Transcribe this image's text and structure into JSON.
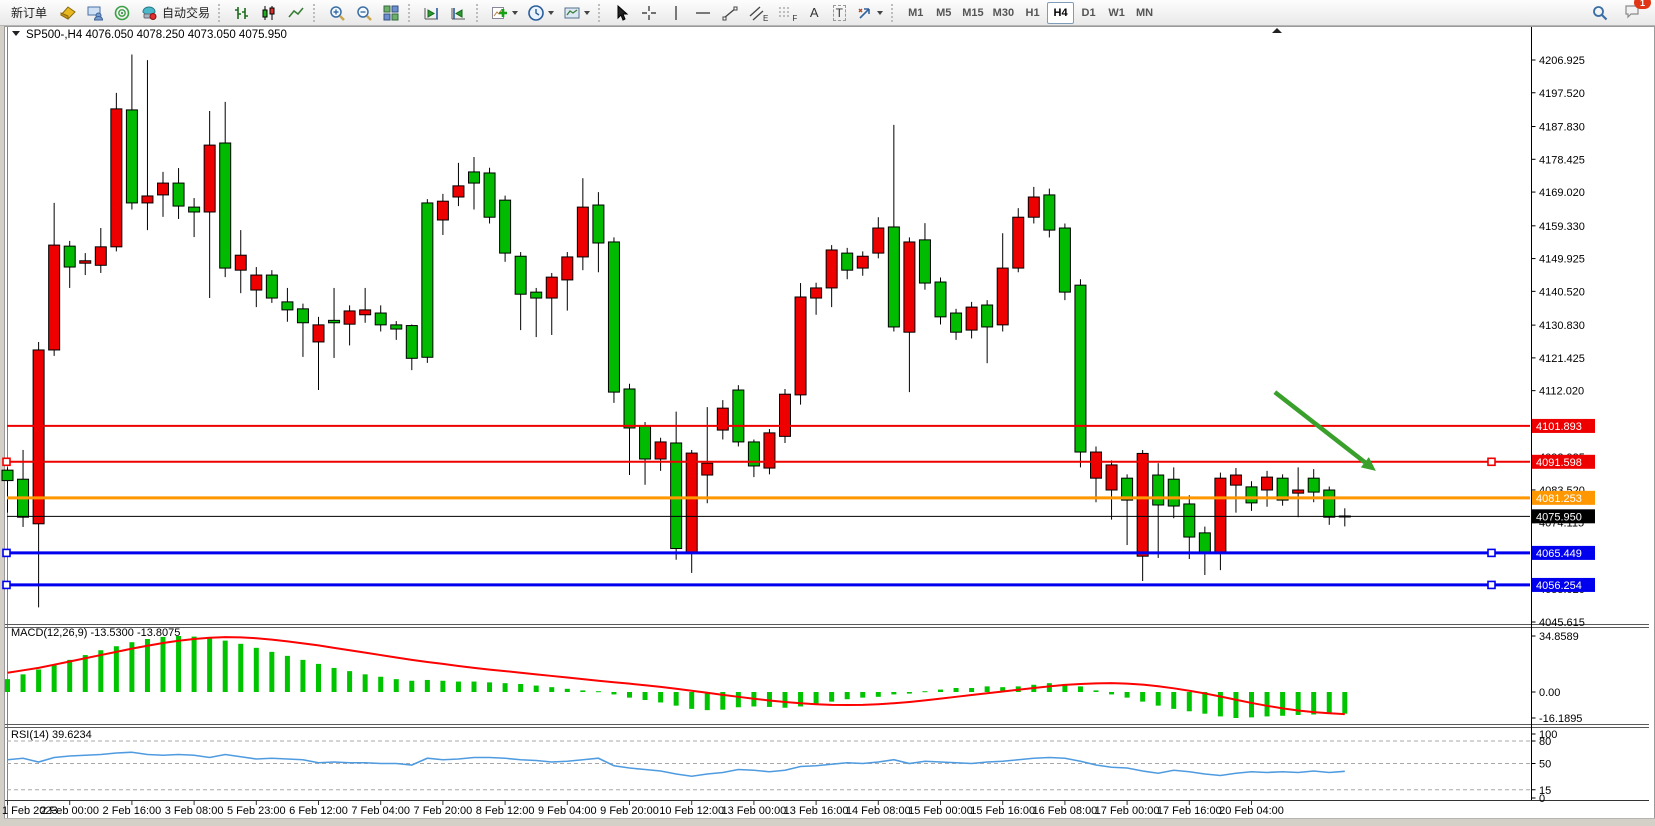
{
  "toolbar": {
    "new_order": "新订单",
    "auto_trading": "自动交易",
    "periods": [
      "M1",
      "M5",
      "M15",
      "M30",
      "H1",
      "H4",
      "D1",
      "W1",
      "MN"
    ],
    "active_period": "H4",
    "notification_count": "1",
    "glyphs": {
      "channel_tool": "E",
      "fibonacci_tool": "F",
      "text_tool": "A",
      "label_tool": "T"
    }
  },
  "symbol_header": {
    "symbol_period": "SP500-,H4",
    "open": "4076.050",
    "high": "4078.250",
    "low": "4073.050",
    "close": "4075.950"
  },
  "price_axis": {
    "ticks": [
      "4206.925",
      "4197.520",
      "4187.830",
      "4178.425",
      "4169.020",
      "4159.330",
      "4149.925",
      "4140.520",
      "4130.830",
      "4121.425",
      "4112.020",
      "4102.330",
      "4092.925",
      "4083.520",
      "4074.115",
      "4064.710",
      "4055.020",
      "4045.615"
    ]
  },
  "levels": [
    {
      "label": "4101.893",
      "price": 4101.893,
      "color": "#ee0000",
      "width": 2,
      "handles": false
    },
    {
      "label": "4091.598",
      "price": 4091.598,
      "color": "#ee0000",
      "width": 2,
      "handles": true
    },
    {
      "label": "4081.253",
      "price": 4081.253,
      "color": "#ff9800",
      "width": 3,
      "handles": false
    },
    {
      "label": "4075.950",
      "price": 4075.95,
      "color": "#000000",
      "width": 1,
      "handles": false
    },
    {
      "label": "4065.449",
      "price": 4065.449,
      "color": "#0000ee",
      "width": 3,
      "handles": true
    },
    {
      "label": "4056.254",
      "price": 4056.254,
      "color": "#0000ee",
      "width": 3,
      "handles": true
    }
  ],
  "indicators": {
    "macd_name": "MACD(12,26,9)",
    "macd_value": "-13.5300",
    "macd_signal_value": "-13.8075",
    "macd_axis": [
      "34.8589",
      "0.00",
      "-16.1895"
    ],
    "rsi_name": "RSI(14)",
    "rsi_value": "39.6234",
    "rsi_axis": [
      "100",
      "80",
      "50",
      "15",
      "0"
    ],
    "rsi_levels": [
      80,
      50,
      15
    ]
  },
  "time_axis": [
    "1 Feb 2023",
    "2 Feb 00:00",
    "2 Feb 16:00",
    "3 Feb 08:00",
    "5 Feb 23:00",
    "6 Feb 12:00",
    "7 Feb 04:00",
    "7 Feb 20:00",
    "8 Feb 12:00",
    "9 Feb 04:00",
    "9 Feb 20:00",
    "10 Feb 12:00",
    "13 Feb 00:00",
    "13 Feb 16:00",
    "14 Feb 08:00",
    "15 Feb 00:00",
    "15 Feb 16:00",
    "16 Feb 08:00",
    "17 Feb 00:00",
    "17 Feb 16:00",
    "20 Feb 04:00"
  ],
  "chart_data": {
    "type": "candlestick",
    "symbol": "SP500-",
    "timeframe": "H4",
    "ylim": [
      4042,
      4212
    ],
    "bars_per_time_label": 4,
    "candles": [
      [
        4086.2,
        4090.0,
        4077.0,
        4089.2
      ],
      [
        4075.7,
        4095.0,
        4072.9,
        4086.6
      ],
      [
        4123.7,
        4126.0,
        4049.8,
        4073.8
      ],
      [
        4153.8,
        4165.9,
        4122.0,
        4123.7
      ],
      [
        4147.5,
        4155.0,
        4141.5,
        4153.5
      ],
      [
        4149.3,
        4151.5,
        4145.2,
        4148.6
      ],
      [
        4153.3,
        4158.7,
        4145.8,
        4148.0
      ],
      [
        4192.9,
        4197.5,
        4152.0,
        4153.3
      ],
      [
        4165.9,
        4208.5,
        4164.0,
        4192.6
      ],
      [
        4167.9,
        4206.9,
        4158.1,
        4165.9
      ],
      [
        4171.6,
        4174.8,
        4161.9,
        4168.2
      ],
      [
        4165.0,
        4175.9,
        4161.3,
        4171.6
      ],
      [
        4163.3,
        4167.3,
        4156.1,
        4164.7
      ],
      [
        4182.5,
        4192.3,
        4138.6,
        4163.3
      ],
      [
        4147.2,
        4194.9,
        4144.6,
        4183.1
      ],
      [
        4150.9,
        4158.1,
        4140.0,
        4146.6
      ],
      [
        4145.2,
        4147.5,
        4136.0,
        4140.9
      ],
      [
        4138.6,
        4146.6,
        4137.2,
        4145.2
      ],
      [
        4135.2,
        4141.5,
        4131.8,
        4137.5
      ],
      [
        4131.5,
        4137.0,
        4121.7,
        4135.5
      ],
      [
        4130.9,
        4133.2,
        4112.2,
        4126.0
      ],
      [
        4131.5,
        4141.5,
        4121.4,
        4132.2
      ],
      [
        4134.9,
        4136.5,
        4125.0,
        4131.1
      ],
      [
        4135.2,
        4141.5,
        4131.5,
        4133.8
      ],
      [
        4130.9,
        4136.5,
        4129.0,
        4134.3
      ],
      [
        4129.7,
        4132.0,
        4126.6,
        4130.9
      ],
      [
        4121.3,
        4131.0,
        4117.9,
        4130.7
      ],
      [
        4121.6,
        4167.0,
        4120.0,
        4165.9
      ],
      [
        4166.4,
        4168.5,
        4156.7,
        4161.0
      ],
      [
        4170.8,
        4177.4,
        4165.0,
        4167.6
      ],
      [
        4171.6,
        4179.1,
        4164.0,
        4174.8
      ],
      [
        4161.8,
        4176.0,
        4160.0,
        4174.5
      ],
      [
        4151.5,
        4168.0,
        4149.0,
        4166.7
      ],
      [
        4139.7,
        4151.8,
        4129.4,
        4150.6
      ],
      [
        4138.6,
        4141.5,
        4127.4,
        4140.3
      ],
      [
        4144.6,
        4145.8,
        4128.0,
        4138.6
      ],
      [
        4150.4,
        4151.8,
        4135.0,
        4143.8
      ],
      [
        4164.7,
        4173.0,
        4146.6,
        4150.4
      ],
      [
        4154.4,
        4169.0,
        4146.0,
        4165.3
      ],
      [
        4111.6,
        4156.0,
        4108.5,
        4154.7
      ],
      [
        4101.3,
        4114.0,
        4087.8,
        4112.5
      ],
      [
        4092.4,
        4103.0,
        4085.0,
        4101.9
      ],
      [
        4097.3,
        4098.5,
        4089.0,
        4092.4
      ],
      [
        4066.7,
        4106.0,
        4063.5,
        4097.0
      ],
      [
        4094.1,
        4095.0,
        4059.7,
        4065.4
      ],
      [
        4091.2,
        4107.3,
        4079.7,
        4087.8
      ],
      [
        4107.0,
        4109.3,
        4098.0,
        4100.7
      ],
      [
        4097.3,
        4113.6,
        4096.0,
        4112.2
      ],
      [
        4090.4,
        4098.0,
        4087.2,
        4097.3
      ],
      [
        4099.9,
        4101.0,
        4088.0,
        4089.8
      ],
      [
        4111.0,
        4112.5,
        4097.0,
        4098.9
      ],
      [
        4138.9,
        4142.9,
        4108.0,
        4110.8
      ],
      [
        4141.5,
        4143.0,
        4133.8,
        4138.6
      ],
      [
        4152.4,
        4153.8,
        4136.0,
        4141.5
      ],
      [
        4146.6,
        4153.0,
        4144.0,
        4151.5
      ],
      [
        4150.6,
        4152.0,
        4145.0,
        4147.2
      ],
      [
        4158.7,
        4161.8,
        4150.0,
        4151.5
      ],
      [
        4130.3,
        4188.3,
        4129.0,
        4159.0
      ],
      [
        4154.7,
        4156.0,
        4111.6,
        4128.8
      ],
      [
        4142.9,
        4160.1,
        4141.0,
        4155.3
      ],
      [
        4133.2,
        4144.5,
        4131.0,
        4143.2
      ],
      [
        4128.8,
        4135.5,
        4126.6,
        4134.3
      ],
      [
        4136.0,
        4137.5,
        4127.0,
        4129.4
      ],
      [
        4130.3,
        4138.0,
        4119.9,
        4136.6
      ],
      [
        4147.2,
        4157.2,
        4129.0,
        4130.9
      ],
      [
        4161.8,
        4164.4,
        4146.0,
        4147.2
      ],
      [
        4167.6,
        4170.5,
        4160.0,
        4161.8
      ],
      [
        4158.1,
        4170.0,
        4156.0,
        4168.2
      ],
      [
        4140.3,
        4160.0,
        4138.0,
        4158.7
      ],
      [
        4094.4,
        4144.0,
        4090.0,
        4142.3
      ],
      [
        4094.4,
        4096.0,
        4080.0,
        4086.9
      ],
      [
        4090.7,
        4092.0,
        4075.0,
        4083.5
      ],
      [
        4080.6,
        4088.0,
        4067.7,
        4086.9
      ],
      [
        4094.0,
        4095.0,
        4057.4,
        4064.5
      ],
      [
        4079.2,
        4091.2,
        4064.0,
        4087.8
      ],
      [
        4078.9,
        4090.0,
        4075.4,
        4086.6
      ],
      [
        4070.0,
        4082.0,
        4063.7,
        4079.5
      ],
      [
        4065.4,
        4073.0,
        4059.1,
        4071.2
      ],
      [
        4086.9,
        4088.5,
        4060.5,
        4065.4
      ],
      [
        4087.8,
        4089.8,
        4077.0,
        4084.9
      ],
      [
        4079.8,
        4086.0,
        4077.5,
        4084.4
      ],
      [
        4087.2,
        4089.0,
        4078.7,
        4083.5
      ],
      [
        4080.6,
        4088.0,
        4079.0,
        4086.9
      ],
      [
        4083.5,
        4090.0,
        4075.7,
        4082.6
      ],
      [
        4082.9,
        4089.5,
        4080.0,
        4086.9
      ],
      [
        4075.7,
        4084.5,
        4073.5,
        4083.5
      ],
      [
        4076.05,
        4078.25,
        4073.05,
        4075.95
      ]
    ],
    "macd": {
      "histogram": [
        8,
        11,
        14,
        17,
        20,
        23,
        26,
        28.5,
        31,
        33,
        34.3,
        34.86,
        34.5,
        33.5,
        32,
        30,
        27.5,
        25,
        22.5,
        20,
        17.5,
        15,
        13,
        11,
        9.5,
        8,
        7,
        7.5,
        7,
        6.5,
        6.5,
        6,
        5.5,
        5,
        4,
        3,
        2,
        1,
        0.5,
        -1.5,
        -3.5,
        -5,
        -6.5,
        -8.5,
        -10.5,
        -11.3,
        -11,
        -9.5,
        -9,
        -9.3,
        -9.8,
        -9,
        -7.5,
        -6,
        -4.5,
        -3.5,
        -3,
        -1.5,
        -1,
        0.5,
        1.5,
        2.5,
        2.5,
        3.5,
        3,
        3.5,
        4.5,
        5.5,
        5,
        3.5,
        1,
        -1.5,
        -3.5,
        -6,
        -8.5,
        -10.5,
        -12,
        -13.5,
        -15.2,
        -16.19,
        -15.8,
        -15.2,
        -14.8,
        -14.3,
        -14,
        -13.7,
        -13.53
      ],
      "signal": [
        12,
        13.5,
        15,
        17,
        19,
        21,
        23,
        25,
        27,
        28.8,
        30.5,
        31.9,
        33,
        33.8,
        34.2,
        34,
        33.5,
        32.6,
        31.5,
        30.3,
        29,
        27.5,
        26,
        24.5,
        23,
        21.5,
        20,
        18.7,
        17.5,
        16.2,
        15,
        13.9,
        13,
        12,
        11,
        10,
        9,
        8,
        7,
        6.1,
        5.2,
        4.2,
        3.2,
        2,
        0.8,
        -0.5,
        -1.8,
        -3,
        -4.2,
        -5.3,
        -6.2,
        -7,
        -7.6,
        -8,
        -8.1,
        -8,
        -7.6,
        -7,
        -6.2,
        -5.2,
        -4.1,
        -3,
        -1.9,
        -0.8,
        0.3,
        1.4,
        2.5,
        3.5,
        4.4,
        5,
        5.4,
        5.5,
        5.2,
        4.6,
        3.6,
        2.3,
        0.8,
        -0.9,
        -2.8,
        -4.8,
        -6.8,
        -8.6,
        -10.2,
        -11.5,
        -12.5,
        -13.2,
        -13.8
      ],
      "range": [
        -16.1895,
        34.8589
      ]
    },
    "rsi": {
      "values": [
        55,
        57,
        52,
        58,
        60,
        61,
        62,
        64,
        65,
        62,
        61,
        62,
        61,
        58,
        62,
        59,
        56,
        57,
        56,
        55,
        51,
        52,
        51,
        51,
        50,
        50,
        48,
        57,
        55,
        56,
        58,
        58,
        57,
        55,
        54,
        52,
        53,
        55,
        57,
        47,
        44,
        42,
        40,
        36,
        33,
        36,
        38,
        42,
        41,
        39,
        41,
        46,
        47,
        49,
        51,
        50,
        52,
        55,
        50,
        53,
        52,
        51,
        50,
        52,
        53,
        55,
        57,
        58,
        57,
        53,
        48,
        45,
        44,
        40,
        37,
        41,
        39,
        36,
        34,
        37,
        39,
        38,
        39,
        38,
        40,
        38,
        39.62
      ],
      "range": [
        0,
        100
      ]
    },
    "annotations": {
      "arrow": {
        "from_bar": 81.5,
        "from_price": 4111.6,
        "to_bar": 88.0,
        "to_price": 4089.0,
        "color": "#3aa02c"
      }
    },
    "colors": {
      "bull": "#00bb00",
      "bear": "#ee0000",
      "wick": "#000000",
      "macd_hist": "#00c400",
      "macd_signal": "#ff0000",
      "rsi_line": "#4f9be0"
    }
  }
}
